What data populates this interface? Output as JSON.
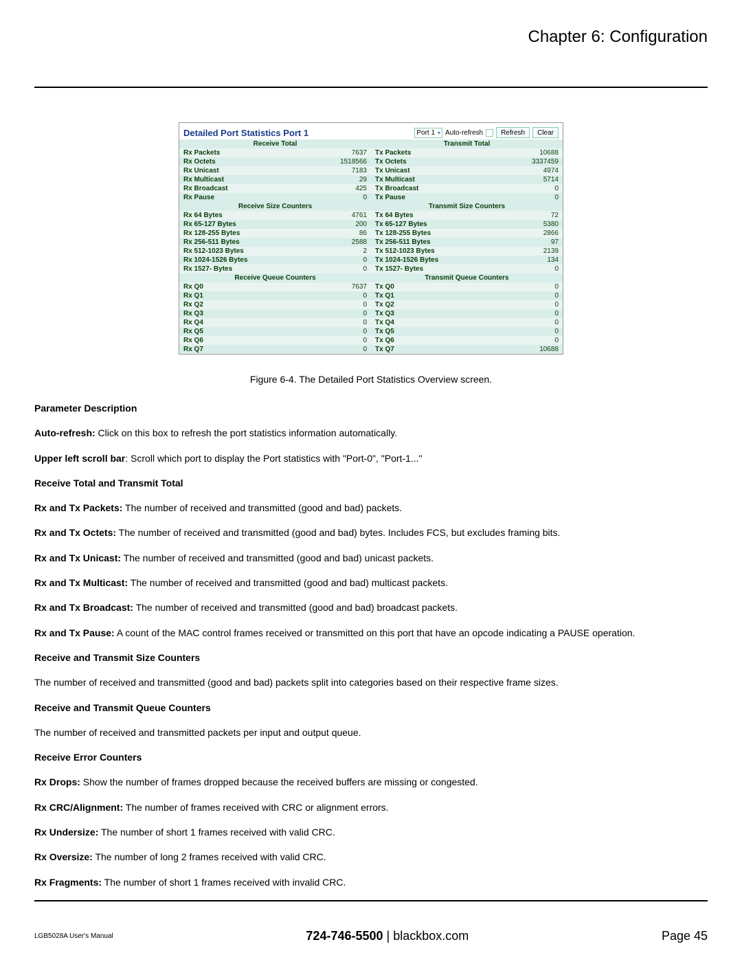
{
  "chapter_title": "Chapter 6: Configuration",
  "screenshot": {
    "title": "Detailed Port Statistics  Port 1",
    "port_select": "Port 1",
    "auto_refresh_label": "Auto-refresh",
    "refresh_btn": "Refresh",
    "clear_btn": "Clear",
    "colors": {
      "title_color": "#1b3b8a",
      "header_bg": "#d9ede9",
      "row_odd_bg": "#d9ede9",
      "row_even_bg": "#e9f4f1",
      "text_color": "#0a3d0a"
    },
    "sections": [
      {
        "left_head": "Receive Total",
        "right_head": "Transmit Total",
        "rows": [
          [
            "Rx Packets",
            "7637",
            "Tx Packets",
            "10688"
          ],
          [
            "Rx Octets",
            "1518566",
            "Tx Octets",
            "3337459"
          ],
          [
            "Rx Unicast",
            "7183",
            "Tx Unicast",
            "4974"
          ],
          [
            "Rx Multicast",
            "29",
            "Tx Multicast",
            "5714"
          ],
          [
            "Rx Broadcast",
            "425",
            "Tx Broadcast",
            "0"
          ],
          [
            "Rx Pause",
            "0",
            "Tx Pause",
            "0"
          ]
        ]
      },
      {
        "left_head": "Receive Size Counters",
        "right_head": "Transmit Size Counters",
        "rows": [
          [
            "Rx 64 Bytes",
            "4761",
            "Tx 64 Bytes",
            "72"
          ],
          [
            "Rx 65-127 Bytes",
            "200",
            "Tx 65-127 Bytes",
            "5380"
          ],
          [
            "Rx 128-255 Bytes",
            "86",
            "Tx 128-255 Bytes",
            "2866"
          ],
          [
            "Rx 256-511 Bytes",
            "2588",
            "Tx 256-511 Bytes",
            "97"
          ],
          [
            "Rx 512-1023 Bytes",
            "2",
            "Tx 512-1023 Bytes",
            "2139"
          ],
          [
            "Rx 1024-1526 Bytes",
            "0",
            "Tx 1024-1526 Bytes",
            "134"
          ],
          [
            "Rx 1527- Bytes",
            "0",
            "Tx 1527- Bytes",
            "0"
          ]
        ]
      },
      {
        "left_head": "Receive Queue Counters",
        "right_head": "Transmit Queue Counters",
        "rows": [
          [
            "Rx Q0",
            "7637",
            "Tx Q0",
            "0"
          ],
          [
            "Rx Q1",
            "0",
            "Tx Q1",
            "0"
          ],
          [
            "Rx Q2",
            "0",
            "Tx Q2",
            "0"
          ],
          [
            "Rx Q3",
            "0",
            "Tx Q3",
            "0"
          ],
          [
            "Rx Q4",
            "0",
            "Tx Q4",
            "0"
          ],
          [
            "Rx Q5",
            "0",
            "Tx Q5",
            "0"
          ],
          [
            "Rx Q6",
            "0",
            "Tx Q6",
            "0"
          ],
          [
            "Rx Q7",
            "0",
            "Tx Q7",
            "10688"
          ]
        ]
      }
    ]
  },
  "caption": "Figure 6-4. The Detailed Port Statistics Overview screen.",
  "body": {
    "param_desc_h": "Parameter Description",
    "auto_refresh_b": "Auto-refresh:",
    "auto_refresh_t": " Click on this box to refresh the port statistics information automatically.",
    "upper_left_b": "Upper left scroll bar",
    "upper_left_t": ": Scroll which port to display the Port statistics with \"Port-0\", \"Port-1...\"",
    "rtt_h": "Receive Total and Transmit Total",
    "rxp_b": "Rx and Tx Packets:",
    "rxp_t": " The number of received and transmitted (good and bad) packets.",
    "rxo_b": "Rx and Tx Octets:",
    "rxo_t": " The number of received and transmitted (good and bad) bytes. Includes FCS, but excludes framing bits.",
    "rxu_b": "Rx and Tx Unicast:",
    "rxu_t": " The number of received and transmitted (good and bad) unicast packets.",
    "rxm_b": "Rx and Tx Multicast:",
    "rxm_t": " The number of received and transmitted (good and bad) multicast packets.",
    "rxb_b": "Rx and Tx Broadcast:",
    "rxb_t": " The number of received and transmitted (good and bad) broadcast packets.",
    "rxpa_b": "Rx and Tx Pause:",
    "rxpa_t": " A count of the MAC control frames received or transmitted on this port that have an opcode indicating a PAUSE operation.",
    "rtsc_h": "Receive and Transmit Size Counters",
    "rtsc_t": "The number of received and transmitted (good and bad) packets split into categories based on their respective frame sizes.",
    "rtqc_h": "Receive and Transmit Queue Counters",
    "rtqc_t": "The number of received and transmitted packets per input and output queue.",
    "rec_h": "Receive Error Counters",
    "rxd_b": "Rx Drops:",
    "rxd_t": " Show the number of frames dropped because the received buffers are missing or congested.",
    "rxc_b": "Rx CRC/Alignment:",
    "rxc_t": " The number of frames received with CRC or alignment errors.",
    "rxun_b": "Rx Undersize:",
    "rxun_t": " The number of short 1 frames received with valid CRC.",
    "rxov_b": "Rx Oversize:",
    "rxov_t": " The number of long 2 frames received with valid CRC.",
    "rxfr_b": "Rx Fragments:",
    "rxfr_t": " The number of short 1 frames received with invalid CRC."
  },
  "footer": {
    "left": "LGB5028A User's Manual",
    "phone": "724-746-5500",
    "sep": "   |   ",
    "site": "blackbox.com",
    "right": "Page 45"
  }
}
